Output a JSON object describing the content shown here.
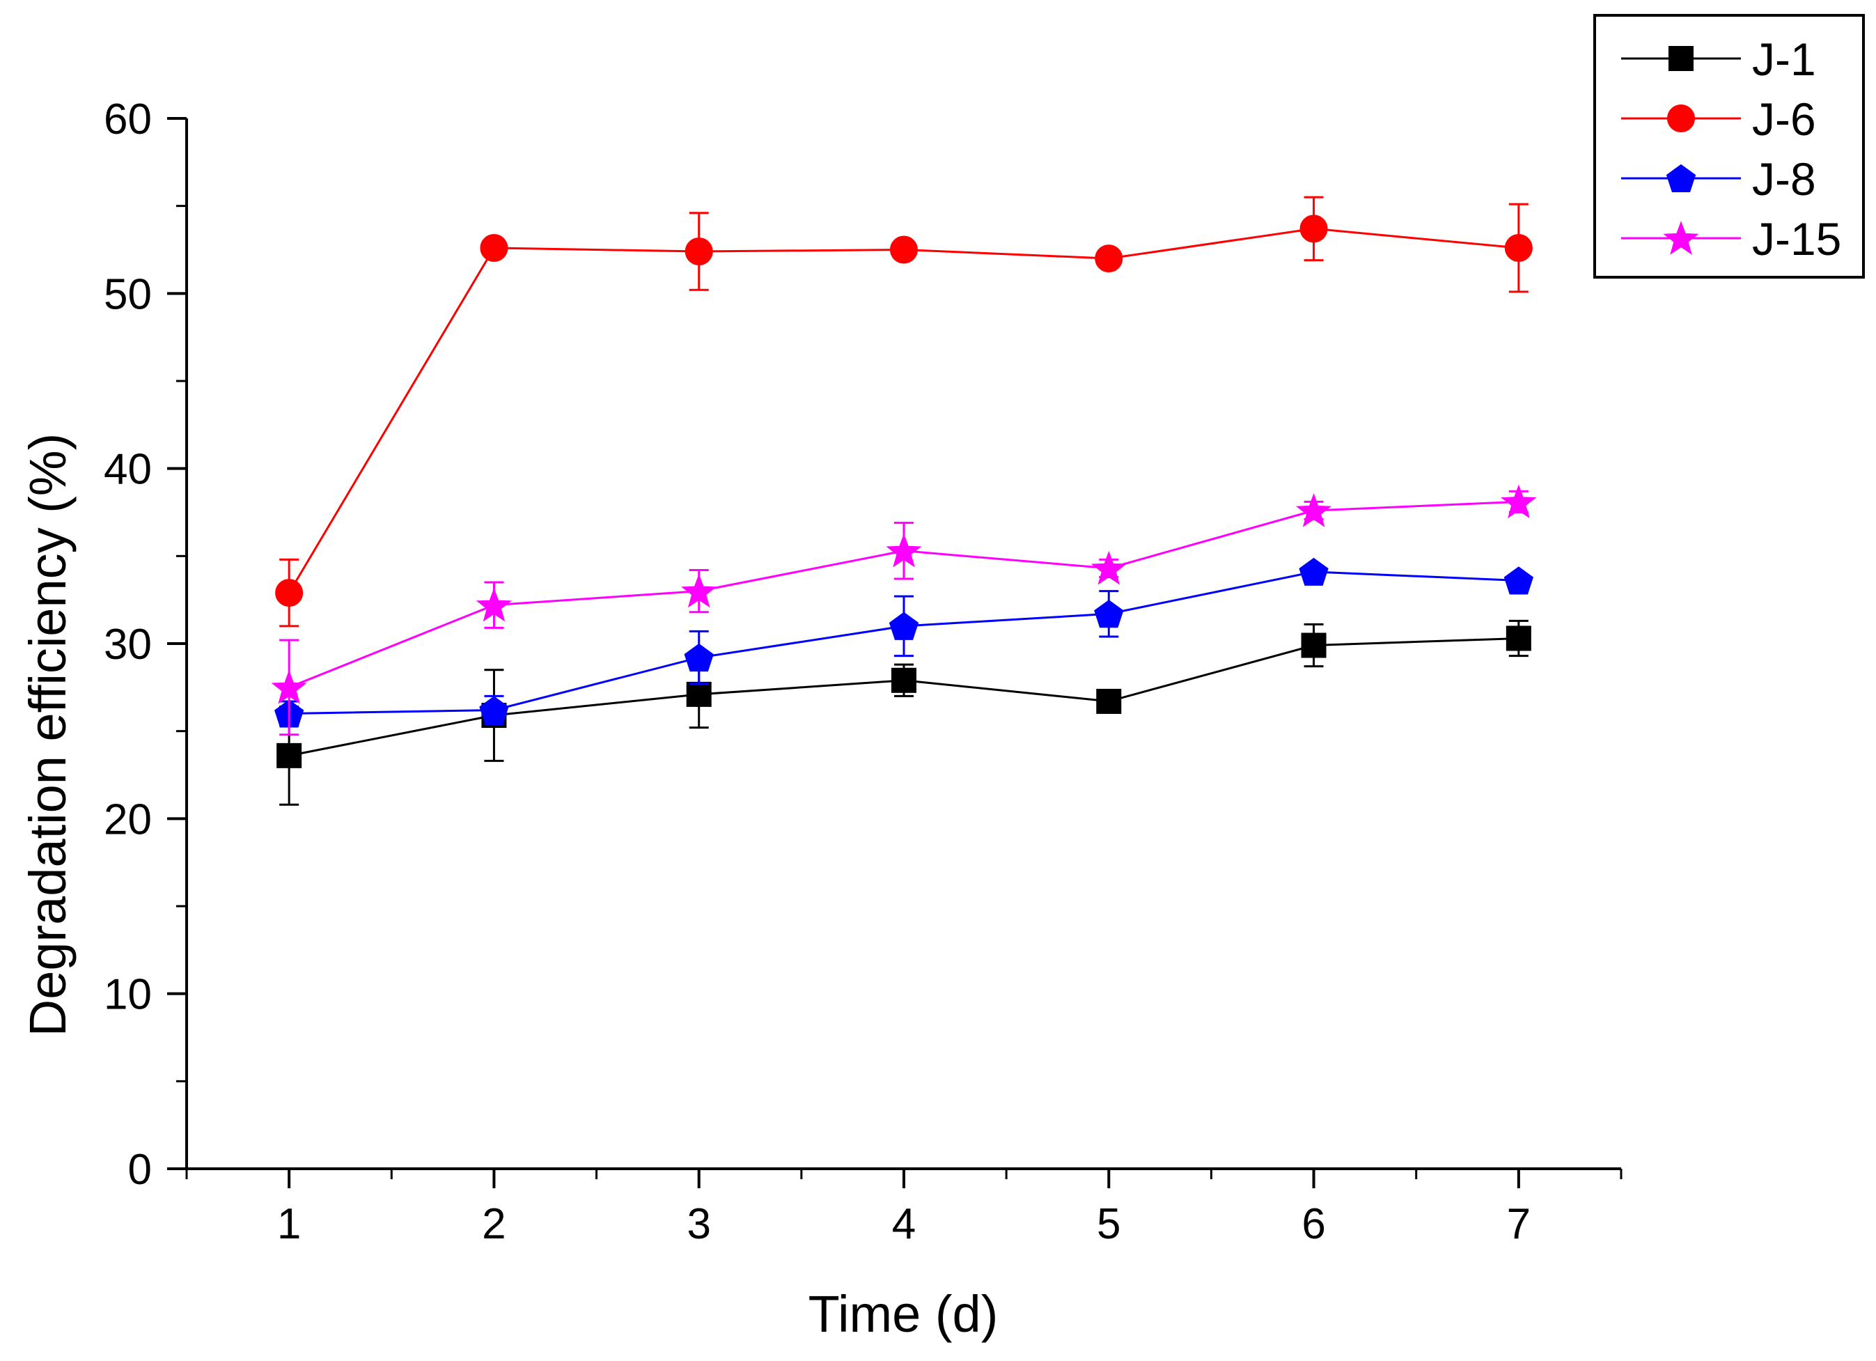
{
  "chart_data": {
    "type": "line",
    "title": "",
    "xlabel": "Time (d)",
    "ylabel": "Degradation efficiency (%)",
    "x": [
      1,
      2,
      3,
      4,
      5,
      6,
      7
    ],
    "xlim": [
      0.5,
      7.5
    ],
    "ylim": [
      0,
      60
    ],
    "xticks": [
      "1",
      "2",
      "3",
      "4",
      "5",
      "6",
      "7"
    ],
    "yticks": [
      "0",
      "10",
      "20",
      "30",
      "40",
      "50",
      "60"
    ],
    "grid": false,
    "legend_position": "top-right",
    "series": [
      {
        "name": "J-1",
        "color": "#000000",
        "marker": "square",
        "values": [
          23.6,
          25.9,
          27.1,
          27.9,
          26.7,
          29.9,
          30.3
        ],
        "errors": [
          2.8,
          2.6,
          1.9,
          0.9,
          0.4,
          1.2,
          1.0
        ]
      },
      {
        "name": "J-6",
        "color": "#ff0000",
        "marker": "circle",
        "values": [
          32.9,
          52.6,
          52.4,
          52.5,
          52.0,
          53.7,
          52.6
        ],
        "errors": [
          1.9,
          0.2,
          2.2,
          0.3,
          0.3,
          1.8,
          2.5
        ]
      },
      {
        "name": "J-8",
        "color": "#0000ff",
        "marker": "pentagon",
        "values": [
          26.0,
          26.2,
          29.2,
          31.0,
          31.7,
          34.1,
          33.6
        ],
        "errors": [
          0.7,
          0.8,
          1.5,
          1.7,
          1.3,
          0.3,
          0.3
        ]
      },
      {
        "name": "J-15",
        "color": "#ff00ff",
        "marker": "star",
        "values": [
          27.5,
          32.2,
          33.0,
          35.3,
          34.3,
          37.6,
          38.1
        ],
        "errors": [
          2.7,
          1.3,
          1.2,
          1.6,
          0.5,
          0.5,
          0.6
        ]
      }
    ]
  }
}
